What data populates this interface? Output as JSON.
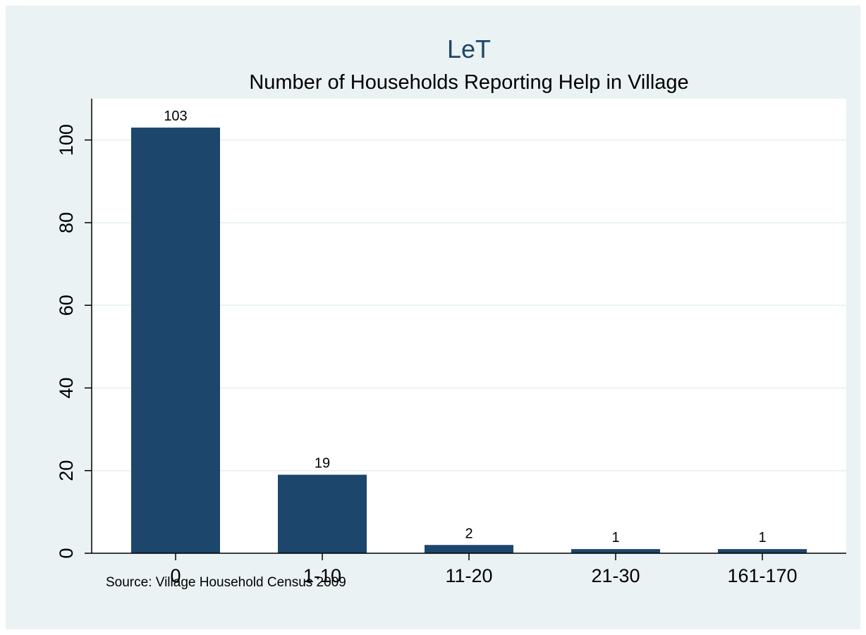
{
  "chart_data": {
    "type": "bar",
    "title": "LeT",
    "subtitle": "Number of Households Reporting Help in Village",
    "xlabel": "",
    "ylabel": "",
    "categories": [
      "0",
      "1-10",
      "11-20",
      "21-30",
      "161-170"
    ],
    "values": [
      103,
      19,
      2,
      1,
      1
    ],
    "data_labels": [
      "103",
      "19",
      "2",
      "1",
      "1"
    ],
    "ylim": [
      0,
      110
    ],
    "yticks": [
      0,
      20,
      40,
      60,
      80,
      100
    ],
    "ytick_labels": [
      "0",
      "20",
      "40",
      "60",
      "80",
      "100"
    ],
    "grid": "horizontal",
    "legend": "none",
    "note": "Source: Village Household Census 2009"
  },
  "colors": {
    "background": "#eaf2f3",
    "plot_background": "#ffffff",
    "bar": "#1c466c",
    "gridline": "#eaf2f3",
    "title": "#1c466c",
    "text": "#000000"
  }
}
